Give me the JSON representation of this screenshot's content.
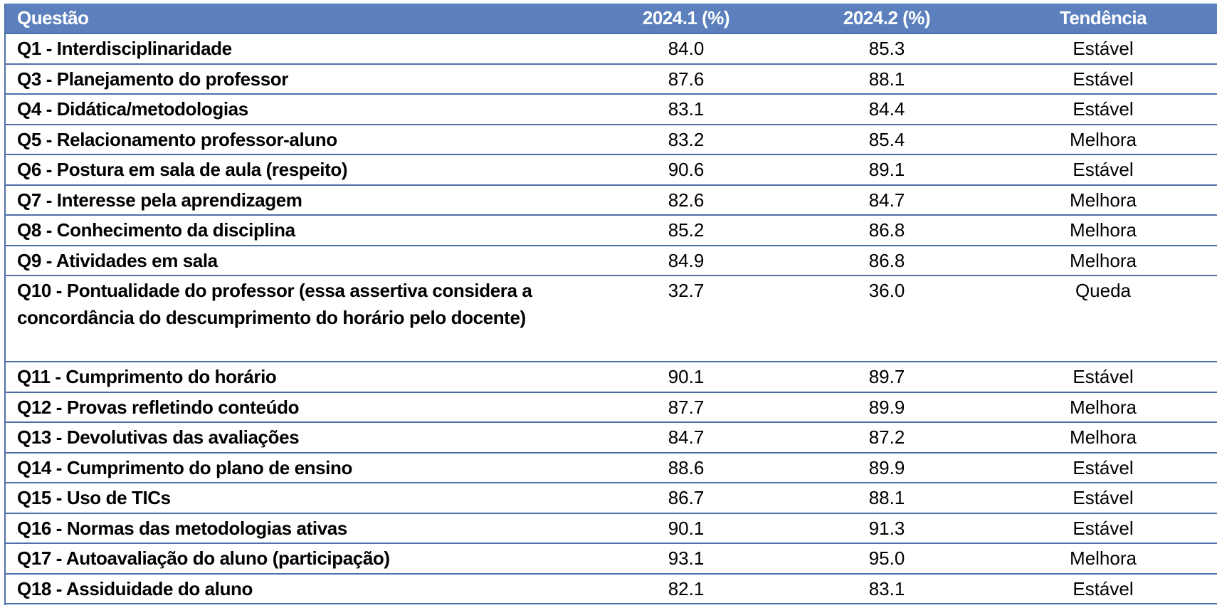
{
  "table": {
    "headers": [
      "Questão",
      "2024.1 (%)",
      "2024.2 (%)",
      "Tendência"
    ],
    "rows": [
      {
        "question": "Q1 - Interdisciplinaridade",
        "v1": "84.0",
        "v2": "85.3",
        "trend": "Estável"
      },
      {
        "question": "Q3 - Planejamento do professor",
        "v1": "87.6",
        "v2": "88.1",
        "trend": "Estável"
      },
      {
        "question": "Q4 - Didática/metodologias",
        "v1": "83.1",
        "v2": "84.4",
        "trend": "Estável"
      },
      {
        "question": "Q5 - Relacionamento professor-aluno",
        "v1": "83.2",
        "v2": "85.4",
        "trend": "Melhora"
      },
      {
        "question": "Q6 - Postura em sala de aula (respeito)",
        "v1": "90.6",
        "v2": "89.1",
        "trend": "Estável"
      },
      {
        "question": "Q7 - Interesse pela aprendizagem",
        "v1": "82.6",
        "v2": "84.7",
        "trend": "Melhora"
      },
      {
        "question": "Q8 - Conhecimento da disciplina",
        "v1": "85.2",
        "v2": "86.8",
        "trend": "Melhora"
      },
      {
        "question": "Q9 - Atividades em sala",
        "v1": "84.9",
        "v2": "86.8",
        "trend": "Melhora"
      },
      {
        "question": "Q10 - Pontualidade do professor (essa assertiva considera a concordância do descumprimento do horário pelo docente)",
        "v1": "32.7",
        "v2": "36.0",
        "trend": "Queda"
      },
      {
        "question": "Q11 - Cumprimento do horário",
        "v1": "90.1",
        "v2": "89.7",
        "trend": "Estável"
      },
      {
        "question": "Q12 - Provas refletindo conteúdo",
        "v1": "87.7",
        "v2": "89.9",
        "trend": "Melhora"
      },
      {
        "question": "Q13 - Devolutivas das avaliações",
        "v1": "84.7",
        "v2": "87.2",
        "trend": "Melhora"
      },
      {
        "question": "Q14 - Cumprimento do plano de ensino",
        "v1": "88.6",
        "v2": "89.9",
        "trend": "Estável"
      },
      {
        "question": "Q15 - Uso de TICs",
        "v1": "86.7",
        "v2": "88.1",
        "trend": "Estável"
      },
      {
        "question": "Q16 - Normas das metodologias ativas",
        "v1": "90.1",
        "v2": "91.3",
        "trend": "Estável"
      },
      {
        "question": "Q17 - Autoavaliação do aluno (participação)",
        "v1": "93.1",
        "v2": "95.0",
        "trend": "Melhora"
      },
      {
        "question": "Q18 - Assiduidade do aluno",
        "v1": "82.1",
        "v2": "83.1",
        "trend": "Estável"
      }
    ]
  },
  "colors": {
    "header_bg": "#5b80bd",
    "header_text": "#ffffff",
    "border": "#4f6fa8"
  }
}
